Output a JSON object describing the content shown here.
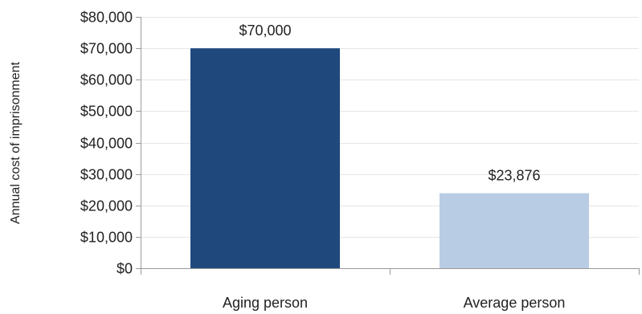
{
  "chart_data": {
    "type": "bar",
    "categories": [
      "Aging person",
      "Average person"
    ],
    "values": [
      70000,
      23876
    ],
    "value_labels": [
      "$70,000",
      "$23,876"
    ],
    "bar_colors": [
      "#1f497d",
      "#b8cce4"
    ],
    "xlabel": "",
    "ylabel": "Annual cost of imprisonment",
    "ylim": [
      0,
      80000
    ],
    "yticks": [
      0,
      10000,
      20000,
      30000,
      40000,
      50000,
      60000,
      70000,
      80000
    ],
    "ytick_labels": [
      "$0",
      "$10,000",
      "$20,000",
      "$30,000",
      "$40,000",
      "$50,000",
      "$60,000",
      "$70,000",
      "$80,000"
    ],
    "grid": true,
    "legend": "none"
  }
}
